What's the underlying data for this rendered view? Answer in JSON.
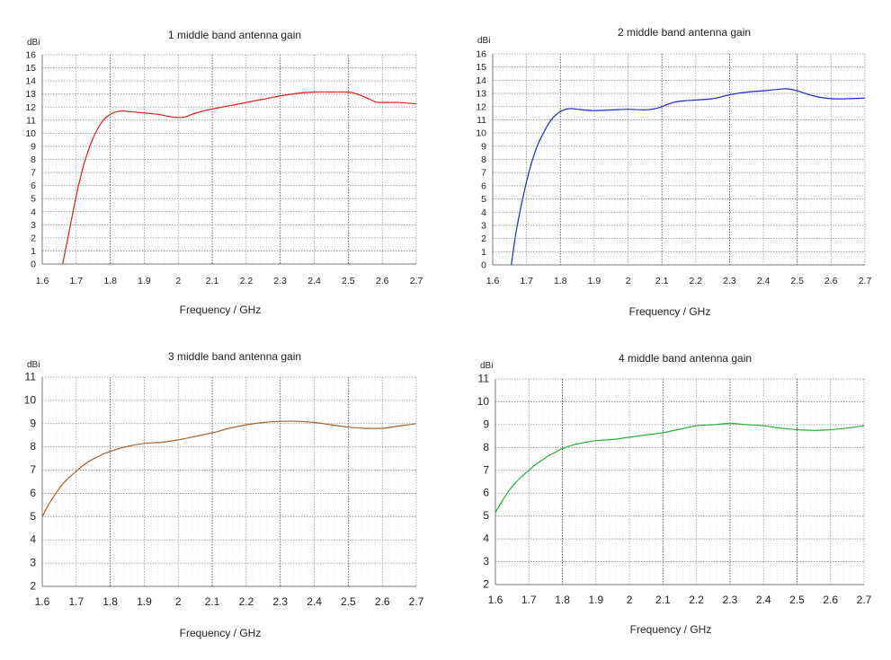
{
  "chart_data": [
    {
      "type": "line",
      "title": "1 middle band antenna gain",
      "xlabel": "Frequency / GHz",
      "ylabel": "dBi",
      "xlim": [
        1.6,
        2.7
      ],
      "ylim": [
        0,
        16
      ],
      "xticks": [
        "1.6",
        "1.7",
        "1.8",
        "1.9",
        "2",
        "2.1",
        "2.2",
        "2.3",
        "2.4",
        "2.5",
        "2.6",
        "2.7"
      ],
      "yticks": [
        "0",
        "1",
        "2",
        "3",
        "4",
        "5",
        "6",
        "7",
        "8",
        "9",
        "10",
        "11",
        "12",
        "13",
        "14",
        "15",
        "16"
      ],
      "grid": true,
      "color": "#e0201e",
      "series": [
        {
          "x": [
            1.66,
            1.68,
            1.7,
            1.72,
            1.74,
            1.76,
            1.78,
            1.8,
            1.82,
            1.84,
            1.86,
            1.88,
            1.9,
            1.92,
            1.94,
            1.96,
            1.98,
            2.0,
            2.02,
            2.04,
            2.06,
            2.08,
            2.1,
            2.15,
            2.2,
            2.25,
            2.3,
            2.35,
            2.4,
            2.45,
            2.5,
            2.52,
            2.55,
            2.58,
            2.6,
            2.65,
            2.7
          ],
          "y": [
            0,
            2.6,
            5.2,
            7.4,
            9.0,
            10.2,
            11.0,
            11.45,
            11.65,
            11.7,
            11.65,
            11.6,
            11.55,
            11.5,
            11.45,
            11.35,
            11.25,
            11.2,
            11.25,
            11.45,
            11.6,
            11.75,
            11.85,
            12.1,
            12.35,
            12.6,
            12.85,
            13.05,
            13.15,
            13.15,
            13.15,
            13.05,
            12.75,
            12.4,
            12.35,
            12.35,
            12.25
          ]
        }
      ]
    },
    {
      "type": "line",
      "title": "2 middle band antenna gain",
      "xlabel": "Frequency / GHz",
      "ylabel": "dBi",
      "xlim": [
        1.6,
        2.7
      ],
      "ylim": [
        0,
        16
      ],
      "xticks": [
        "1.6",
        "1.7",
        "1.8",
        "1.9",
        "2",
        "2.1",
        "2.2",
        "2.3",
        "2.4",
        "2.5",
        "2.6",
        "2.7"
      ],
      "yticks": [
        "0",
        "1",
        "2",
        "3",
        "4",
        "5",
        "6",
        "7",
        "8",
        "9",
        "10",
        "11",
        "12",
        "13",
        "14",
        "15",
        "16"
      ],
      "grid": true,
      "color": "#1e28d8",
      "series": [
        {
          "x": [
            1.655,
            1.67,
            1.69,
            1.71,
            1.73,
            1.75,
            1.77,
            1.79,
            1.81,
            1.83,
            1.85,
            1.87,
            1.9,
            1.95,
            2.0,
            2.05,
            2.08,
            2.1,
            2.12,
            2.15,
            2.2,
            2.25,
            2.3,
            2.35,
            2.4,
            2.44,
            2.47,
            2.5,
            2.55,
            2.6,
            2.65,
            2.7
          ],
          "y": [
            0,
            2.6,
            5.2,
            7.3,
            8.9,
            10.0,
            10.9,
            11.45,
            11.75,
            11.85,
            11.8,
            11.75,
            11.7,
            11.75,
            11.8,
            11.75,
            11.85,
            12.0,
            12.2,
            12.4,
            12.5,
            12.6,
            12.9,
            13.1,
            13.2,
            13.3,
            13.35,
            13.2,
            12.8,
            12.6,
            12.6,
            12.65
          ]
        }
      ]
    },
    {
      "type": "line",
      "title": "3 middle band antenna gain",
      "xlabel": "Frequency / GHz",
      "ylabel": "dBi",
      "xlim": [
        1.6,
        2.7
      ],
      "ylim": [
        2,
        11
      ],
      "xticks": [
        "1.6",
        "1.7",
        "1.8",
        "1.9",
        "2",
        "2.1",
        "2.2",
        "2.3",
        "2.4",
        "2.5",
        "2.6",
        "2.7"
      ],
      "yticks": [
        "2",
        "3",
        "4",
        "5",
        "6",
        "7",
        "8",
        "9",
        "10",
        "11"
      ],
      "grid": true,
      "color": "#a6642c",
      "series": [
        {
          "x": [
            1.6,
            1.62,
            1.64,
            1.66,
            1.68,
            1.7,
            1.72,
            1.74,
            1.76,
            1.78,
            1.8,
            1.83,
            1.86,
            1.9,
            1.95,
            2.0,
            2.05,
            2.1,
            2.15,
            2.2,
            2.25,
            2.3,
            2.35,
            2.4,
            2.45,
            2.5,
            2.55,
            2.6,
            2.65,
            2.7
          ],
          "y": [
            5.0,
            5.55,
            6.0,
            6.4,
            6.7,
            6.95,
            7.2,
            7.4,
            7.55,
            7.7,
            7.8,
            7.95,
            8.05,
            8.15,
            8.2,
            8.3,
            8.45,
            8.6,
            8.8,
            8.95,
            9.05,
            9.1,
            9.1,
            9.05,
            8.95,
            8.85,
            8.8,
            8.8,
            8.9,
            9.0
          ]
        }
      ]
    },
    {
      "type": "line",
      "title": "4 middle band antenna gain",
      "xlabel": "Frequency / GHz",
      "ylabel": "dBi",
      "xlim": [
        1.6,
        2.7
      ],
      "ylim": [
        2,
        11
      ],
      "xticks": [
        "1.6",
        "1.7",
        "1.8",
        "1.9",
        "2",
        "2.1",
        "2.2",
        "2.3",
        "2.4",
        "2.5",
        "2.6",
        "2.7"
      ],
      "yticks": [
        "2",
        "3",
        "4",
        "5",
        "6",
        "7",
        "8",
        "9",
        "10",
        "11"
      ],
      "grid": true,
      "color": "#22b43c",
      "series": [
        {
          "x": [
            1.6,
            1.62,
            1.64,
            1.66,
            1.68,
            1.7,
            1.72,
            1.74,
            1.76,
            1.78,
            1.8,
            1.83,
            1.86,
            1.9,
            1.95,
            2.0,
            2.05,
            2.1,
            2.15,
            2.2,
            2.25,
            2.3,
            2.35,
            2.4,
            2.45,
            2.5,
            2.55,
            2.6,
            2.65,
            2.7
          ],
          "y": [
            5.15,
            5.65,
            6.1,
            6.45,
            6.75,
            7.0,
            7.25,
            7.45,
            7.65,
            7.8,
            7.95,
            8.1,
            8.2,
            8.3,
            8.35,
            8.45,
            8.55,
            8.65,
            8.8,
            8.95,
            9.0,
            9.05,
            9.0,
            8.95,
            8.85,
            8.78,
            8.75,
            8.78,
            8.85,
            8.95
          ]
        }
      ]
    }
  ]
}
